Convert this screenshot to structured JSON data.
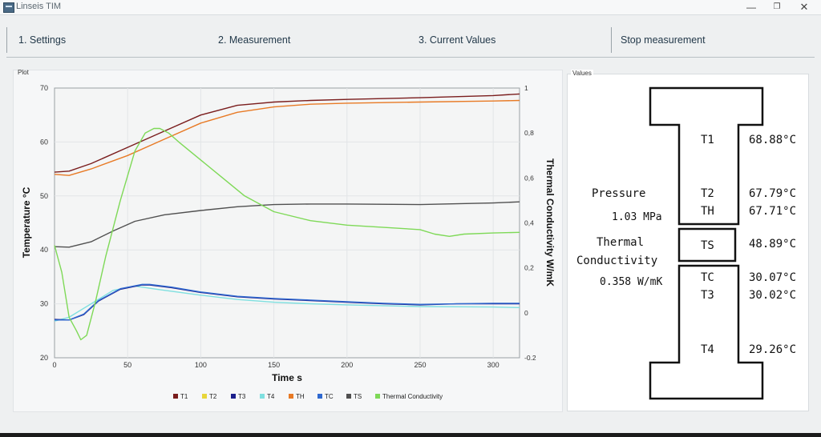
{
  "window": {
    "title": "Linseis TIM",
    "minimize": "—",
    "maximize": "❐",
    "close": "✕"
  },
  "nav": {
    "settings": "1.  Settings",
    "measurement": "2. Measurement",
    "current_values": "3. Current Values",
    "stop": "Stop measurement"
  },
  "plot_panel": {
    "label": "Plot"
  },
  "values_panel": {
    "label": "Values",
    "pressure_label": "Pressure",
    "pressure_value": "1.03 MPa",
    "thermal_label_1": "Thermal",
    "thermal_label_2": "Conductivity",
    "thermal_value": "0.358 W/mK",
    "sensors": [
      {
        "name": "T1",
        "value": "68.88°C"
      },
      {
        "name": "T2",
        "value": "67.79°C"
      },
      {
        "name": "TH",
        "value": "67.71°C"
      },
      {
        "name": "TS",
        "value": "48.89°C"
      },
      {
        "name": "TC",
        "value": "30.07°C"
      },
      {
        "name": "T3",
        "value": "30.02°C"
      },
      {
        "name": "T4",
        "value": "29.26°C"
      }
    ]
  },
  "chart_data": {
    "type": "line",
    "xlabel": "Time s",
    "ylabel": "Temperature °C",
    "y2label": "Thermal Conductivity W/mK",
    "xlim": [
      0,
      318
    ],
    "ylim": [
      20,
      70
    ],
    "y2lim": [
      -0.2,
      1
    ],
    "xticks": [
      0,
      50,
      100,
      150,
      200,
      250,
      300
    ],
    "yticks": [
      20,
      30,
      40,
      50,
      60,
      70
    ],
    "y2ticks": [
      -0.2,
      0,
      0.2,
      0.4,
      0.6,
      0.8,
      1
    ],
    "y2ticklabels": [
      "-0.2",
      "0",
      "0,2",
      "0,4",
      "0,6",
      "0,8",
      "1"
    ],
    "grid": true,
    "legend_position": "bottom",
    "series": [
      {
        "name": "T1",
        "color": "#7a1d1d",
        "axis": "left",
        "x": [
          0,
          10,
          25,
          50,
          75,
          100,
          125,
          150,
          175,
          200,
          250,
          300,
          318
        ],
        "y": [
          54.4,
          54.6,
          56.0,
          59.0,
          62.0,
          65.0,
          66.8,
          67.4,
          67.7,
          67.9,
          68.2,
          68.6,
          68.9
        ]
      },
      {
        "name": "T2",
        "color": "#e8d63a",
        "axis": "left",
        "x": [],
        "y": []
      },
      {
        "name": "T3",
        "color": "#1b1f8c",
        "axis": "left",
        "x": [
          0,
          10,
          20,
          30,
          45,
          60,
          65,
          80,
          100,
          125,
          150,
          175,
          200,
          225,
          250,
          275,
          300,
          318
        ],
        "y": [
          27.1,
          27.0,
          28.0,
          30.5,
          32.7,
          33.5,
          33.5,
          33.0,
          32.1,
          31.3,
          30.9,
          30.6,
          30.3,
          30.0,
          29.8,
          30.0,
          30.0,
          30.0
        ]
      },
      {
        "name": "T4",
        "color": "#7fe0e0",
        "axis": "left",
        "x": [
          0,
          10,
          25,
          40,
          55,
          70,
          100,
          125,
          150,
          175,
          200,
          250,
          300,
          318
        ],
        "y": [
          26.8,
          27.5,
          30.0,
          32.5,
          33.3,
          32.7,
          31.6,
          30.8,
          30.3,
          30.0,
          29.8,
          29.5,
          29.4,
          29.3
        ]
      },
      {
        "name": "TH",
        "color": "#e87a25",
        "axis": "left",
        "x": [
          0,
          10,
          25,
          50,
          75,
          100,
          125,
          150,
          175,
          200,
          250,
          300,
          318
        ],
        "y": [
          54.0,
          53.8,
          55.0,
          57.5,
          60.5,
          63.5,
          65.5,
          66.5,
          67.0,
          67.2,
          67.4,
          67.6,
          67.7
        ]
      },
      {
        "name": "TC",
        "color": "#2f69d0",
        "axis": "left",
        "x": [
          0,
          10,
          20,
          30,
          45,
          60,
          65,
          80,
          100,
          125,
          150,
          175,
          200,
          225,
          250,
          275,
          300,
          318
        ],
        "y": [
          27.0,
          27.0,
          28.1,
          30.6,
          32.8,
          33.6,
          33.6,
          33.1,
          32.2,
          31.4,
          31.0,
          30.7,
          30.4,
          30.1,
          29.9,
          30.0,
          30.1,
          30.1
        ]
      },
      {
        "name": "TS",
        "color": "#505050",
        "axis": "left",
        "x": [
          0,
          10,
          25,
          40,
          55,
          75,
          100,
          125,
          150,
          175,
          200,
          250,
          300,
          318
        ],
        "y": [
          40.6,
          40.5,
          41.5,
          43.5,
          45.3,
          46.5,
          47.3,
          48.0,
          48.4,
          48.5,
          48.5,
          48.4,
          48.7,
          48.9
        ]
      },
      {
        "name": "Thermal Conductivity",
        "color": "#7ed957",
        "axis": "right",
        "x": [
          0,
          5,
          10,
          15,
          18,
          22,
          28,
          35,
          45,
          55,
          62,
          68,
          72,
          78,
          85,
          100,
          115,
          130,
          150,
          175,
          200,
          225,
          250,
          260,
          270,
          280,
          300,
          318
        ],
        "y": [
          0.3,
          0.18,
          -0.02,
          -0.08,
          -0.12,
          -0.1,
          0.05,
          0.25,
          0.5,
          0.72,
          0.8,
          0.82,
          0.82,
          0.8,
          0.76,
          0.68,
          0.6,
          0.52,
          0.45,
          0.41,
          0.39,
          0.38,
          0.37,
          0.35,
          0.34,
          0.35,
          0.355,
          0.358
        ]
      }
    ]
  }
}
